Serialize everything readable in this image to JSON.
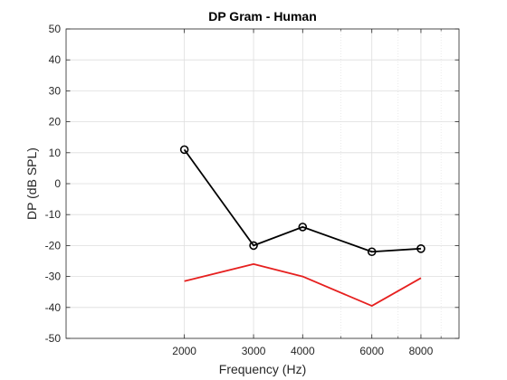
{
  "chart_data": {
    "type": "line",
    "title": "DP Gram - Human",
    "xlabel": "Frequency (Hz)",
    "ylabel": "DP (dB SPL)",
    "x_scale": "log",
    "xlim": [
      1000,
      10000
    ],
    "ylim": [
      -50,
      50
    ],
    "x_ticks": [
      2000,
      3000,
      4000,
      6000,
      8000
    ],
    "y_ticks": [
      -50,
      -40,
      -30,
      -20,
      -10,
      0,
      10,
      20,
      30,
      40,
      50
    ],
    "grid": true,
    "minor_grid": true,
    "series": [
      {
        "color": "#000000",
        "marker": "circle",
        "x": [
          2000,
          3000,
          4000,
          6000,
          8000
        ],
        "y": [
          11,
          -20,
          -14,
          -22,
          -21
        ]
      },
      {
        "color": "#e6201f",
        "marker": "none",
        "x": [
          2000,
          3000,
          4000,
          6000,
          8000
        ],
        "y": [
          -31.5,
          -26,
          -30,
          -39.5,
          -30.5
        ]
      }
    ]
  }
}
